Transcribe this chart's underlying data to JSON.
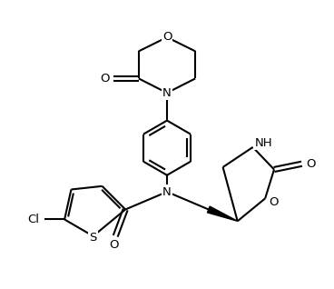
{
  "bg_color": "#ffffff",
  "bond_color": "#000000",
  "bond_width": 1.5,
  "font_size": 9.5,
  "figsize": [
    3.68,
    3.18
  ],
  "dpi": 100,
  "xlim": [
    0,
    9.2
  ],
  "ylim": [
    0,
    8.6
  ]
}
